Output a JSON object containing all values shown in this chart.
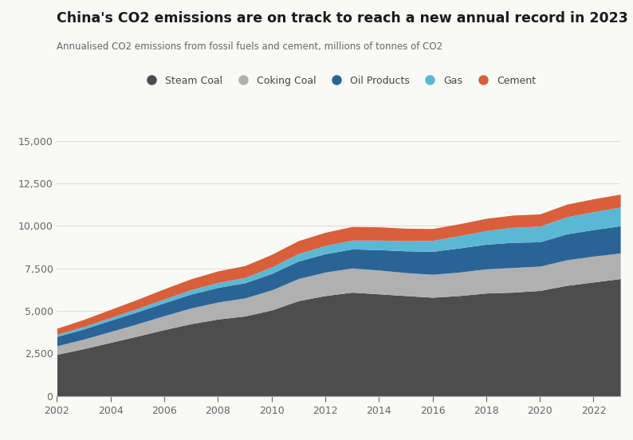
{
  "title": "China's CO2 emissions are on track to reach a new annual record in 2023",
  "subtitle": "Annualised CO2 emissions from fossil fuels and cement, millions of tonnes of CO2",
  "background_color": "#f9f9f7",
  "years": [
    2002,
    2003,
    2004,
    2005,
    2006,
    2007,
    2008,
    2009,
    2010,
    2011,
    2012,
    2013,
    2014,
    2015,
    2016,
    2017,
    2018,
    2019,
    2020,
    2021,
    2022,
    2023
  ],
  "steam_coal": [
    2450,
    2780,
    3150,
    3520,
    3900,
    4250,
    4520,
    4700,
    5050,
    5600,
    5900,
    6100,
    6000,
    5900,
    5800,
    5900,
    6050,
    6100,
    6200,
    6500,
    6700,
    6900
  ],
  "coking_coal": [
    500,
    560,
    640,
    720,
    820,
    920,
    1000,
    1060,
    1180,
    1300,
    1380,
    1420,
    1400,
    1350,
    1350,
    1380,
    1420,
    1450,
    1430,
    1500,
    1520,
    1500
  ],
  "oil_products": [
    550,
    600,
    660,
    710,
    760,
    820,
    860,
    890,
    970,
    1030,
    1080,
    1120,
    1200,
    1280,
    1350,
    1420,
    1450,
    1480,
    1430,
    1530,
    1560,
    1600
  ],
  "gas": [
    120,
    140,
    160,
    190,
    220,
    260,
    290,
    310,
    380,
    440,
    480,
    520,
    560,
    590,
    640,
    720,
    800,
    880,
    920,
    1000,
    1050,
    1100
  ],
  "cement": [
    360,
    420,
    480,
    540,
    600,
    640,
    680,
    700,
    740,
    760,
    780,
    800,
    780,
    740,
    700,
    700,
    720,
    720,
    720,
    740,
    760,
    760
  ],
  "colors": {
    "steam_coal": "#4d4d4d",
    "coking_coal": "#b0b0b0",
    "oil_products": "#2a6496",
    "gas": "#5bb8d4",
    "cement": "#d95f3b"
  },
  "ylim": [
    0,
    15000
  ],
  "yticks": [
    0,
    2500,
    5000,
    7500,
    10000,
    12500,
    15000
  ],
  "xticks": [
    2002,
    2004,
    2006,
    2008,
    2010,
    2012,
    2014,
    2016,
    2018,
    2020,
    2022
  ],
  "legend_labels": [
    "Steam Coal",
    "Coking Coal",
    "Oil Products",
    "Gas",
    "Cement"
  ]
}
